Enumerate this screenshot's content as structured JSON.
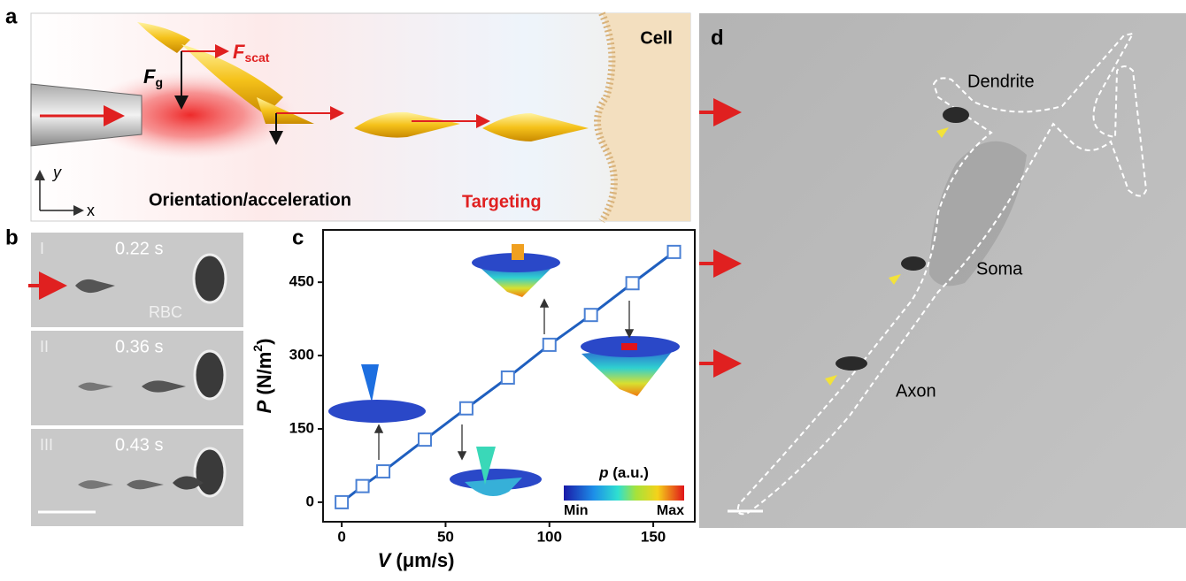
{
  "panels": {
    "a": {
      "label": "a",
      "cell": "Cell",
      "force_g": {
        "symbol": "F",
        "subscript": "g"
      },
      "force_scat": {
        "symbol": "F",
        "subscript": "scat"
      },
      "axis_y": "y",
      "axis_x": "x",
      "stage1": "Orientation/acceleration",
      "stage2": "Targeting"
    },
    "b": {
      "label": "b",
      "frames": [
        {
          "index": "I",
          "time": "0.22 s",
          "note": "RBC"
        },
        {
          "index": "II",
          "time": "0.36 s"
        },
        {
          "index": "III",
          "time": "0.43 s"
        }
      ]
    },
    "c": {
      "label": "c",
      "colorbar": {
        "symbol": "p",
        "unit": "(a.u.)",
        "min": "Min",
        "max": "Max"
      }
    },
    "d": {
      "label": "d",
      "dendrite": "Dendrite",
      "soma": "Soma",
      "axon": "Axon"
    }
  },
  "chart_data": {
    "type": "line",
    "x_label": {
      "symbol": "V",
      "unit": "(μm/s)"
    },
    "y_label": {
      "symbol": "P",
      "unit_start": "(N/m",
      "unit_power": "2",
      "unit_end": ")"
    },
    "series": [
      {
        "color": "#1f5fbf",
        "x": [
          0,
          10,
          20,
          40,
          60,
          80,
          100,
          120,
          140,
          160
        ],
        "values": [
          0,
          33,
          63,
          128,
          192,
          255,
          322,
          383,
          448,
          512
        ]
      }
    ],
    "xlim": [
      -9,
      170
    ],
    "ylim": [
      -40,
      557
    ],
    "xticks": [
      0,
      50,
      100,
      150
    ],
    "yticks": [
      0,
      150,
      300,
      450
    ],
    "grid": false
  }
}
